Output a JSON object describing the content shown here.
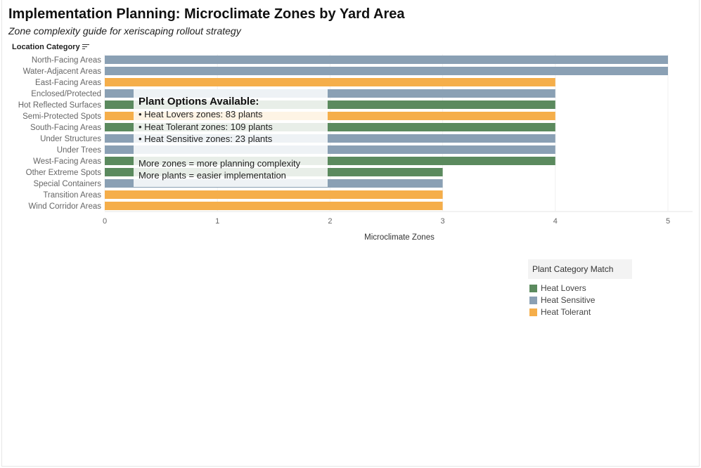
{
  "title": "Implementation Planning: Microclimate Zones by Yard Area",
  "subtitle": "Zone complexity guide for xeriscaping rollout strategy",
  "row_header": "Location Category",
  "chart_data": {
    "type": "bar",
    "orientation": "horizontal",
    "categories": [
      "North-Facing Areas",
      "Water-Adjacent Areas",
      "East-Facing Areas",
      "Enclosed/Protected",
      "Hot Reflected Surfaces",
      "Semi-Protected Spots",
      "South-Facing Areas",
      "Under Structures",
      "Under Trees",
      "West-Facing Areas",
      "Other Extreme Spots",
      "Special Containers",
      "Transition Areas",
      "Wind Corridor Areas"
    ],
    "values": [
      5,
      5,
      4,
      4,
      4,
      4,
      4,
      4,
      4,
      4,
      3,
      3,
      3,
      3
    ],
    "color_match": [
      "Heat Sensitive",
      "Heat Sensitive",
      "Heat Tolerant",
      "Heat Sensitive",
      "Heat Lovers",
      "Heat Tolerant",
      "Heat Lovers",
      "Heat Sensitive",
      "Heat Sensitive",
      "Heat Lovers",
      "Heat Lovers",
      "Heat Sensitive",
      "Heat Tolerant",
      "Heat Tolerant"
    ],
    "xlabel": "Microclimate Zones",
    "xlim": [
      0,
      5
    ],
    "xticks": [
      0,
      1,
      2,
      3,
      4,
      5
    ],
    "grid": true,
    "legend_placement": "right"
  },
  "legend": {
    "title": "Plant Category Match",
    "items": [
      {
        "label": "Heat Lovers",
        "color": "#5b8a5e"
      },
      {
        "label": "Heat Sensitive",
        "color": "#8aa0b4"
      },
      {
        "label": "Heat Tolerant",
        "color": "#f5ae4a"
      }
    ]
  },
  "annotation": {
    "title": "Plant Options Available:",
    "lines": [
      "• Heat Lovers zones: 83 plants",
      "• Heat Tolerant zones: 109 plants",
      "• Heat Sensitive zones: 23 plants",
      "",
      "More zones = more planning complexity",
      "More plants = easier implementation"
    ]
  }
}
